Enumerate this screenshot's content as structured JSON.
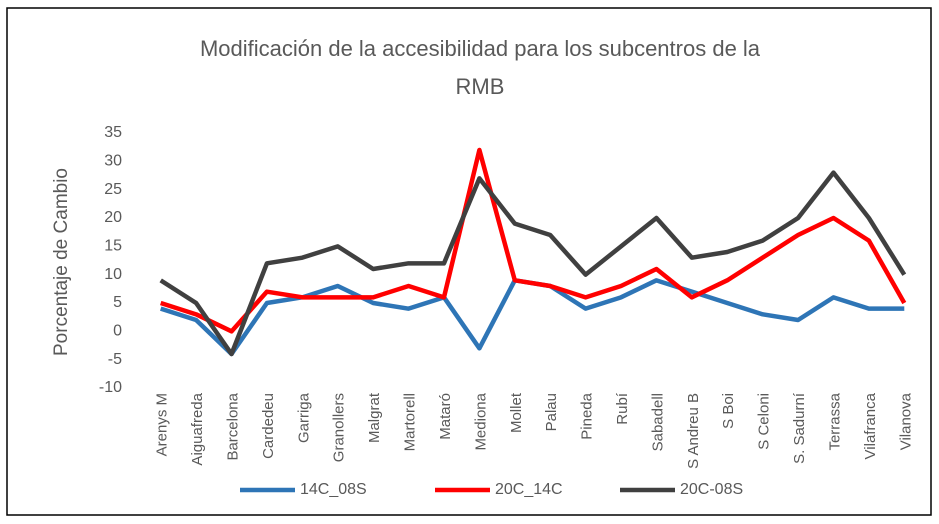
{
  "chart_data": {
    "type": "line",
    "title": "Modificación de la accesibilidad para los subcentros de la RMB",
    "y_label": "Porcentaje de Cambio",
    "categories": [
      "Arenys M",
      "Aiguafreda",
      "Barcelona",
      "Cardedeu",
      "Garriga",
      "Granollers",
      "Malgrat",
      "Martorell",
      "Mataró",
      "Mediona",
      "Mollet",
      "Palau",
      "Pineda",
      "Rubí",
      "Sabadell",
      "S Andreu B",
      "S Boi",
      "S Celoni",
      "S. Sadurní",
      "Terrassa",
      "Vilafranca",
      "Vilanova"
    ],
    "series": [
      {
        "name": "14C_08S",
        "color": "#2e75b6",
        "values": [
          4,
          2,
          -4,
          5,
          6,
          8,
          5,
          4,
          6,
          -3,
          9,
          8,
          4,
          6,
          9,
          7,
          5,
          3,
          2,
          6,
          4,
          4
        ]
      },
      {
        "name": "20C_14C",
        "color": "#ff0000",
        "values": [
          5,
          3,
          0,
          7,
          6,
          6,
          6,
          8,
          6,
          32,
          9,
          8,
          6,
          8,
          11,
          6,
          9,
          13,
          17,
          20,
          16,
          5
        ]
      },
      {
        "name": "20C-08S",
        "color": "#404040",
        "values": [
          9,
          5,
          -4,
          12,
          13,
          15,
          11,
          12,
          12,
          27,
          19,
          17,
          10,
          15,
          20,
          13,
          14,
          16,
          20,
          28,
          20,
          10
        ]
      }
    ],
    "ylim": [
      -10,
      35
    ],
    "yticks": [
      -10,
      -5,
      0,
      5,
      10,
      15,
      20,
      25,
      30,
      35
    ],
    "legend": "bottom",
    "grid": false
  }
}
